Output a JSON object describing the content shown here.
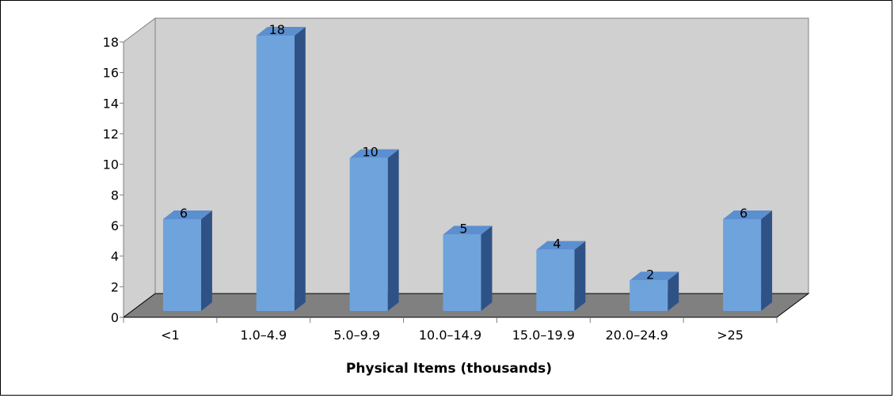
{
  "chart_data": {
    "type": "bar",
    "title": "",
    "xlabel": "Physical Items (thousands)",
    "ylabel": "",
    "categories": [
      "<1",
      "1.0–4.9",
      "5.0–9.9",
      "10.0–14.9",
      "15.0–19.9",
      "20.0–24.9",
      ">25"
    ],
    "series": [
      {
        "values": [
          6,
          18,
          10,
          5,
          4,
          2,
          6
        ]
      }
    ],
    "ylim": [
      0,
      18
    ],
    "yticks": [
      0,
      2,
      4,
      6,
      8,
      10,
      12,
      14,
      16,
      18
    ],
    "grid": false,
    "legend": "none",
    "style": "3d-column",
    "colors": {
      "bar_front": "#6fa3dc",
      "bar_top": "#5b8fd0",
      "bar_side": "#2f5286",
      "back_wall": "#d0d0d0",
      "floor": "#808080"
    }
  }
}
